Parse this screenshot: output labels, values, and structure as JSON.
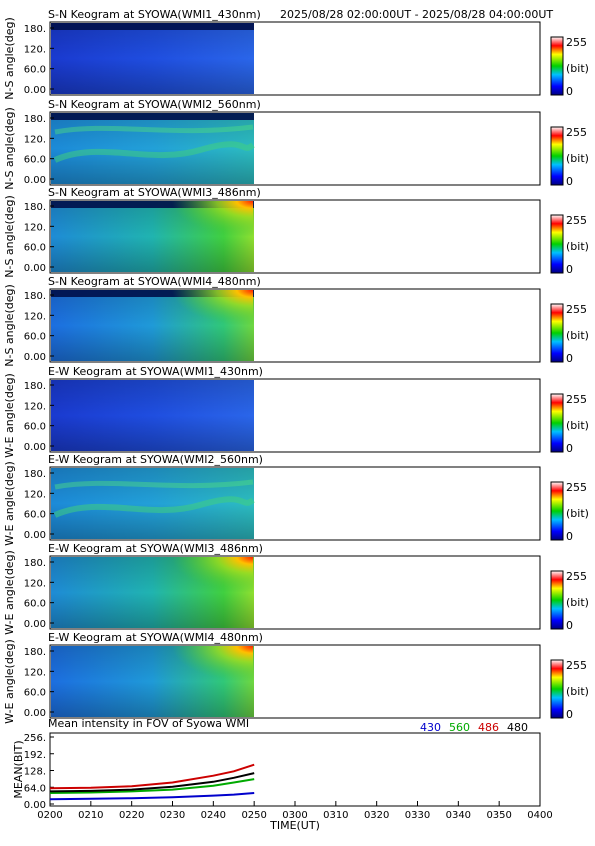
{
  "header": {
    "time_range": "2025/08/28 02:00:00UT - 2025/08/28 04:00:00UT"
  },
  "colorbar": {
    "max_label": "255",
    "unit_label": "(bit)",
    "min_label": "0"
  },
  "keograms": [
    {
      "title": "S-N Keogram at SYOWA(WMI1_430nm)",
      "ylabel": "N-S angle(deg)",
      "yticks": [
        "180.",
        "120.",
        "60.0",
        "0.00"
      ],
      "profile": "blue1"
    },
    {
      "title": "S-N Keogram at SYOWA(WMI2_560nm)",
      "ylabel": "N-S angle(deg)",
      "yticks": [
        "180.",
        "120.",
        "60.0",
        "0.00"
      ],
      "profile": "green560"
    },
    {
      "title": "S-N Keogram at SYOWA(WMI3_486nm)",
      "ylabel": "N-S angle(deg)",
      "yticks": [
        "180.",
        "120.",
        "60.0",
        "0.00"
      ],
      "profile": "red486"
    },
    {
      "title": "S-N Keogram at SYOWA(WMI4_480nm)",
      "ylabel": "N-S angle(deg)",
      "yticks": [
        "180.",
        "120.",
        "60.0",
        "0.00"
      ],
      "profile": "red480"
    },
    {
      "title": "E-W Keogram at SYOWA(WMI1_430nm)",
      "ylabel": "W-E angle(deg)",
      "yticks": [
        "180.",
        "120.",
        "60.0",
        "0.00"
      ],
      "profile": "blue1"
    },
    {
      "title": "E-W Keogram at SYOWA(WMI2_560nm)",
      "ylabel": "W-E angle(deg)",
      "yticks": [
        "180.",
        "120.",
        "60.0",
        "0.00"
      ],
      "profile": "green560"
    },
    {
      "title": "E-W Keogram at SYOWA(WMI3_486nm)",
      "ylabel": "W-E angle(deg)",
      "yticks": [
        "180.",
        "120.",
        "60.0",
        "0.00"
      ],
      "profile": "red486"
    },
    {
      "title": "E-W Keogram at SYOWA(WMI4_480nm)",
      "ylabel": "W-E angle(deg)",
      "yticks": [
        "180.",
        "120.",
        "60.0",
        "0.00"
      ],
      "profile": "red480"
    }
  ],
  "chart_data": {
    "type": "line",
    "title": "Mean intensity in FOV of Syowa WMI",
    "xlabel": "TIME(UT)",
    "ylabel": "MEAN(BIT)",
    "x_tick_labels": [
      "0200",
      "0210",
      "0220",
      "0230",
      "0240",
      "0250",
      "0300",
      "0310",
      "0320",
      "0330",
      "0340",
      "0350",
      "0400"
    ],
    "y_tick_labels": [
      "256.",
      "192.",
      "128.",
      "64.0",
      "0.00"
    ],
    "ylim": [
      0,
      256
    ],
    "x": [
      "0200",
      "0210",
      "0220",
      "0230",
      "0240",
      "0245",
      "0250"
    ],
    "series": [
      {
        "name": "430",
        "color": "#0000cc",
        "values": [
          18,
          20,
          22,
          26,
          32,
          36,
          42
        ]
      },
      {
        "name": "560",
        "color": "#00aa00",
        "values": [
          42,
          44,
          48,
          55,
          70,
          82,
          95
        ]
      },
      {
        "name": "486",
        "color": "#cc0000",
        "values": [
          60,
          62,
          68,
          82,
          108,
          125,
          150
        ]
      },
      {
        "name": "480",
        "color": "#000000",
        "values": [
          48,
          50,
          55,
          66,
          85,
          100,
          118
        ]
      }
    ]
  }
}
